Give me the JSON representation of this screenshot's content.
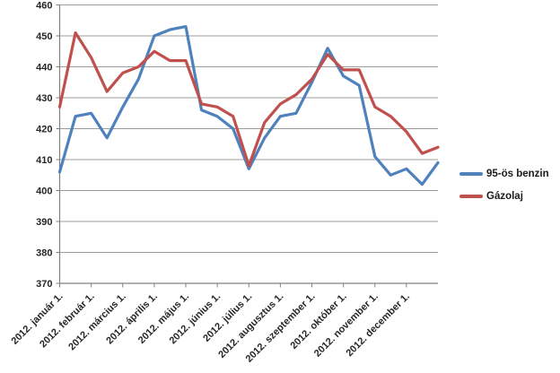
{
  "chart_data": {
    "type": "line",
    "title": "",
    "xlabel": "",
    "ylabel": "",
    "ylim": [
      370,
      460
    ],
    "ytick_step": 10,
    "grid": true,
    "legend_position": "right",
    "sampling": "biweekly",
    "y_tick_labels": [
      "370",
      "380",
      "390",
      "400",
      "410",
      "420",
      "430",
      "440",
      "450",
      "460"
    ],
    "x_tick_labels": [
      "2012. január 1.",
      "2012. február 1.",
      "2012. március 1.",
      "2012. április 1.",
      "2012. május 1.",
      "2012. június 1.",
      "2012. július 1.",
      "2012. augusztus 1.",
      "2012. szeptember 1.",
      "2012. október 1.",
      "2012. november 1.",
      "2012. december 1."
    ],
    "series": [
      {
        "name": "95-ös benzin",
        "color": "#4F81BD",
        "values": [
          406,
          424,
          425,
          417,
          427,
          436,
          450,
          452,
          453,
          426,
          424,
          420,
          407,
          417,
          424,
          425,
          435,
          446,
          437,
          434,
          411,
          405,
          407,
          402,
          409
        ]
      },
      {
        "name": "Gázolaj",
        "color": "#C0504D",
        "values": [
          427,
          451,
          443,
          432,
          438,
          440,
          445,
          442,
          442,
          428,
          427,
          424,
          408,
          422,
          428,
          431,
          436,
          444,
          439,
          439,
          427,
          424,
          419,
          412,
          414
        ]
      }
    ],
    "axis_color": "#808080",
    "gridline_color": "#9C9C9C",
    "label_color": "#262626"
  }
}
